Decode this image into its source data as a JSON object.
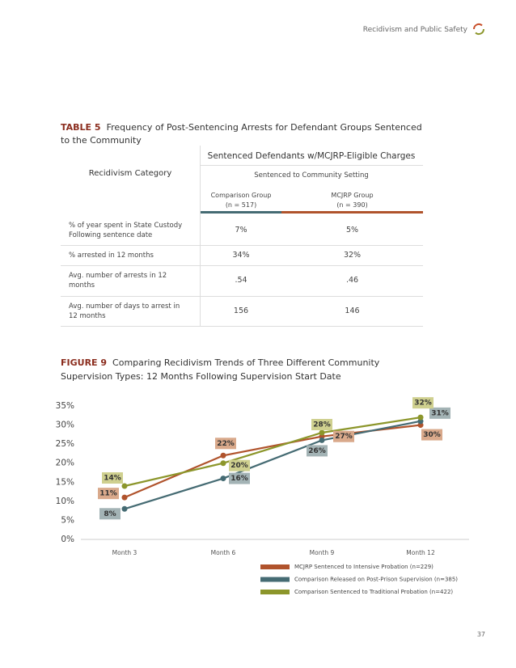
{
  "header": {
    "text": "Recidivism and Public Safety"
  },
  "table": {
    "label": "TABLE 5",
    "title": "Frequency of Post-Sentencing Arrests for Defendant Groups Sentenced to the Community",
    "group_header": "Sentenced Defendants w/MCJRP-Eligible Charges",
    "row_header": "Recidivism Category",
    "sub_header": "Sentenced to Community Setting",
    "columns": [
      {
        "name": "Comparison Group",
        "n": "(n = 517)"
      },
      {
        "name": "MCJRP Group",
        "n": "(n = 390)"
      }
    ],
    "rows": [
      [
        "% of year spent in State Custody Following sentence date",
        "7%",
        "5%"
      ],
      [
        "% arrested in 12 months",
        "34%",
        "32%"
      ],
      [
        "Avg. number of arrests in 12 months",
        ".54",
        ".46"
      ],
      [
        "Avg. number of days to arrest in 12 months",
        "156",
        "146"
      ]
    ]
  },
  "figure": {
    "label": "FIGURE 9",
    "title": "Comparing Recidivism Trends of Three Different Community Supervision Types: 12 Months Following Supervision Start Date",
    "chart_data": {
      "type": "line",
      "categories": [
        "Month 3",
        "Month 6",
        "Month 9",
        "Month 12"
      ],
      "ylim": [
        0,
        35
      ],
      "yticks": [
        {
          "value": 0,
          "label": "0%"
        },
        {
          "value": 5,
          "label": "5%"
        },
        {
          "value": 10,
          "label": "10%"
        },
        {
          "value": 15,
          "label": "15%"
        },
        {
          "value": 20,
          "label": "20%"
        },
        {
          "value": 25,
          "label": "25%"
        },
        {
          "value": 30,
          "label": "30%"
        },
        {
          "value": 35,
          "label": "35%"
        }
      ],
      "series": [
        {
          "name": "MCJRP Sentenced to Intensive Probation (n=229)",
          "color": "#b0532c",
          "label_color": "#d9a98b",
          "values": [
            11,
            22,
            27,
            30
          ],
          "value_labels": [
            "11%",
            "22%",
            "27%",
            "30%"
          ]
        },
        {
          "name": "Comparison Released on Post-Prison Supervision (n=385)",
          "color": "#456b73",
          "label_color": "#a3b3b5",
          "values": [
            8,
            16,
            26,
            31
          ],
          "value_labels": [
            "8%",
            "16%",
            "26%",
            "31%"
          ]
        },
        {
          "name": "Comparison Sentenced to Traditional Probation (n=422)",
          "color": "#8c962b",
          "label_color": "#cfd08f",
          "values": [
            14,
            20,
            28,
            32
          ],
          "value_labels": [
            "14%",
            "20%",
            "28%",
            "32%"
          ]
        }
      ]
    }
  },
  "page_number": "37"
}
